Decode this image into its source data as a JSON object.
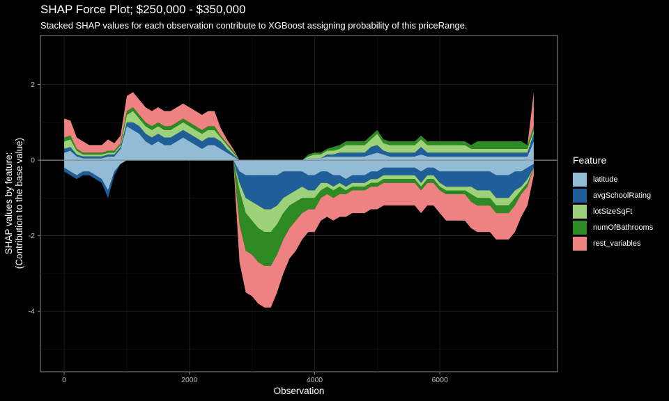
{
  "chart_data": {
    "type": "area",
    "title": "SHAP Force Plot; $250,000 - $350,000",
    "subtitle": "Stacked SHAP values for each observation contribute to XGBoost assigning probability of this priceRange.",
    "xlabel": "Observation",
    "ylabel": "SHAP values by feature:\n(Contribution to the base value)",
    "xlim": [
      -380,
      7880
    ],
    "ylim": [
      -5.6,
      3.3
    ],
    "x_ticks": [
      0,
      2000,
      4000,
      6000
    ],
    "x_tick_labels": [
      "0",
      "2000",
      "4000",
      "6000"
    ],
    "y_ticks": [
      2,
      0,
      -2,
      -4
    ],
    "y_tick_labels": [
      "2",
      "0",
      "-2",
      "-4"
    ],
    "grid": true,
    "legend_position": "right",
    "legend_title": "Feature",
    "x": [
      0,
      100,
      200,
      300,
      400,
      500,
      600,
      700,
      800,
      900,
      1000,
      1100,
      1200,
      1300,
      1400,
      1500,
      1600,
      1700,
      1800,
      1900,
      2000,
      2100,
      2200,
      2300,
      2400,
      2500,
      2600,
      2700,
      2800,
      2900,
      3000,
      3100,
      3200,
      3300,
      3400,
      3500,
      3600,
      3700,
      3800,
      3900,
      4000,
      4100,
      4200,
      4300,
      4400,
      4500,
      4600,
      4700,
      4800,
      4900,
      5000,
      5100,
      5200,
      5300,
      5400,
      5500,
      5600,
      5700,
      5800,
      5900,
      6000,
      6100,
      6200,
      6300,
      6400,
      6500,
      6600,
      6700,
      6800,
      6900,
      7000,
      7100,
      7200,
      7300,
      7400,
      7500
    ],
    "series": [
      {
        "name": "latitude",
        "color": "#92bcd6",
        "pos": [
          0.2,
          0.25,
          0.1,
          0.05,
          0.05,
          0.05,
          0.05,
          0.1,
          0.1,
          0.3,
          0.9,
          0.8,
          0.7,
          0.5,
          0.4,
          0.5,
          0.4,
          0.4,
          0.5,
          0.6,
          0.5,
          0.4,
          0.3,
          0.4,
          0.4,
          0.3,
          0.2,
          0.1,
          0.0,
          0.0,
          0.0,
          0.0,
          0.0,
          0.0,
          0.0,
          0.0,
          0.0,
          0.0,
          0.0,
          0.05,
          0.05,
          0.05,
          0.1,
          0.1,
          0.1,
          0.1,
          0.1,
          0.1,
          0.1,
          0.15,
          0.2,
          0.15,
          0.1,
          0.1,
          0.1,
          0.1,
          0.1,
          0.15,
          0.1,
          0.1,
          0.1,
          0.1,
          0.1,
          0.1,
          0.1,
          0.1,
          0.1,
          0.1,
          0.1,
          0.1,
          0.1,
          0.1,
          0.1,
          0.1,
          0.1,
          0.5
        ],
        "neg": [
          0.2,
          0.3,
          0.4,
          0.3,
          0.3,
          0.4,
          0.5,
          0.8,
          0.3,
          0.1,
          0.0,
          0.0,
          0.0,
          0.0,
          0.0,
          0.0,
          0.0,
          0.0,
          0.0,
          0.0,
          0.0,
          0.0,
          0.0,
          0.0,
          0.0,
          0.0,
          0.0,
          0.0,
          0.3,
          0.4,
          0.4,
          0.4,
          0.4,
          0.4,
          0.4,
          0.3,
          0.3,
          0.3,
          0.3,
          0.4,
          0.4,
          0.3,
          0.3,
          0.4,
          0.4,
          0.5,
          0.4,
          0.4,
          0.4,
          0.3,
          0.3,
          0.2,
          0.2,
          0.2,
          0.2,
          0.2,
          0.2,
          0.3,
          0.2,
          0.2,
          0.3,
          0.3,
          0.3,
          0.3,
          0.3,
          0.3,
          0.3,
          0.3,
          0.3,
          0.4,
          0.4,
          0.4,
          0.3,
          0.3,
          0.2,
          0.1
        ]
      },
      {
        "name": "avgSchoolRating",
        "color": "#1f5e99",
        "pos": [
          0.1,
          0.1,
          0.05,
          0.05,
          0.05,
          0.05,
          0.05,
          0.05,
          0.05,
          0.05,
          0.1,
          0.2,
          0.2,
          0.2,
          0.2,
          0.2,
          0.2,
          0.2,
          0.2,
          0.2,
          0.2,
          0.2,
          0.2,
          0.2,
          0.2,
          0.2,
          0.1,
          0.05,
          0.0,
          0.0,
          0.0,
          0.0,
          0.0,
          0.0,
          0.0,
          0.0,
          0.0,
          0.0,
          0.0,
          0.0,
          0.0,
          0.0,
          0.05,
          0.05,
          0.1,
          0.1,
          0.1,
          0.1,
          0.1,
          0.2,
          0.2,
          0.1,
          0.1,
          0.1,
          0.1,
          0.1,
          0.1,
          0.2,
          0.1,
          0.1,
          0.1,
          0.1,
          0.1,
          0.1,
          0.1,
          0.1,
          0.1,
          0.1,
          0.1,
          0.1,
          0.1,
          0.1,
          0.1,
          0.1,
          0.1,
          0.2
        ],
        "neg": [
          0.1,
          0.1,
          0.1,
          0.1,
          0.1,
          0.1,
          0.1,
          0.2,
          0.1,
          0.0,
          0.0,
          0.0,
          0.0,
          0.0,
          0.0,
          0.0,
          0.0,
          0.0,
          0.0,
          0.0,
          0.0,
          0.0,
          0.0,
          0.0,
          0.0,
          0.0,
          0.0,
          0.0,
          0.3,
          0.6,
          0.7,
          0.8,
          0.9,
          0.9,
          0.8,
          0.7,
          0.6,
          0.5,
          0.4,
          0.4,
          0.4,
          0.3,
          0.3,
          0.3,
          0.2,
          0.2,
          0.2,
          0.2,
          0.2,
          0.2,
          0.2,
          0.2,
          0.2,
          0.2,
          0.2,
          0.2,
          0.2,
          0.3,
          0.2,
          0.2,
          0.3,
          0.4,
          0.4,
          0.4,
          0.4,
          0.4,
          0.5,
          0.5,
          0.5,
          0.6,
          0.6,
          0.6,
          0.5,
          0.4,
          0.3,
          0.1
        ]
      },
      {
        "name": "lotSizeSqFt",
        "color": "#9ed27a",
        "pos": [
          0.2,
          0.2,
          0.1,
          0.05,
          0.05,
          0.05,
          0.05,
          0.05,
          0.05,
          0.05,
          0.2,
          0.3,
          0.2,
          0.2,
          0.2,
          0.2,
          0.2,
          0.2,
          0.2,
          0.2,
          0.2,
          0.2,
          0.2,
          0.2,
          0.2,
          0.1,
          0.1,
          0.05,
          0.0,
          0.0,
          0.0,
          0.0,
          0.0,
          0.0,
          0.0,
          0.0,
          0.0,
          0.0,
          0.0,
          0.05,
          0.1,
          0.1,
          0.1,
          0.1,
          0.1,
          0.2,
          0.2,
          0.2,
          0.2,
          0.2,
          0.3,
          0.2,
          0.2,
          0.2,
          0.2,
          0.2,
          0.2,
          0.2,
          0.2,
          0.2,
          0.2,
          0.2,
          0.2,
          0.2,
          0.2,
          0.1,
          0.1,
          0.1,
          0.1,
          0.1,
          0.1,
          0.1,
          0.1,
          0.1,
          0.1,
          0.1
        ],
        "neg": [
          0.0,
          0.0,
          0.0,
          0.0,
          0.0,
          0.0,
          0.0,
          0.0,
          0.0,
          0.0,
          0.0,
          0.0,
          0.0,
          0.0,
          0.0,
          0.0,
          0.0,
          0.0,
          0.0,
          0.0,
          0.0,
          0.0,
          0.0,
          0.0,
          0.0,
          0.0,
          0.0,
          0.0,
          0.2,
          0.4,
          0.5,
          0.6,
          0.6,
          0.6,
          0.5,
          0.4,
          0.3,
          0.3,
          0.3,
          0.2,
          0.2,
          0.2,
          0.1,
          0.1,
          0.1,
          0.1,
          0.1,
          0.1,
          0.1,
          0.1,
          0.1,
          0.1,
          0.1,
          0.1,
          0.1,
          0.1,
          0.1,
          0.1,
          0.1,
          0.1,
          0.1,
          0.1,
          0.1,
          0.1,
          0.1,
          0.2,
          0.2,
          0.2,
          0.2,
          0.2,
          0.2,
          0.2,
          0.2,
          0.1,
          0.1,
          0.0
        ]
      },
      {
        "name": "numOfBathrooms",
        "color": "#2e8a22",
        "pos": [
          0.1,
          0.1,
          0.05,
          0.05,
          0.05,
          0.05,
          0.05,
          0.05,
          0.05,
          0.05,
          0.1,
          0.1,
          0.1,
          0.1,
          0.1,
          0.1,
          0.1,
          0.1,
          0.1,
          0.1,
          0.1,
          0.1,
          0.1,
          0.1,
          0.1,
          0.05,
          0.05,
          0.05,
          0.0,
          0.0,
          0.0,
          0.0,
          0.0,
          0.0,
          0.0,
          0.0,
          0.0,
          0.0,
          0.0,
          0.05,
          0.05,
          0.05,
          0.05,
          0.1,
          0.1,
          0.1,
          0.1,
          0.1,
          0.1,
          0.1,
          0.1,
          0.1,
          0.1,
          0.1,
          0.1,
          0.1,
          0.1,
          0.1,
          0.1,
          0.1,
          0.1,
          0.1,
          0.1,
          0.1,
          0.1,
          0.1,
          0.2,
          0.2,
          0.2,
          0.2,
          0.2,
          0.2,
          0.2,
          0.2,
          0.1,
          0.1
        ],
        "neg": [
          0.0,
          0.0,
          0.0,
          0.0,
          0.0,
          0.0,
          0.0,
          0.0,
          0.0,
          0.0,
          0.0,
          0.0,
          0.0,
          0.0,
          0.0,
          0.0,
          0.0,
          0.0,
          0.0,
          0.0,
          0.0,
          0.0,
          0.0,
          0.0,
          0.0,
          0.0,
          0.0,
          0.0,
          0.9,
          1.0,
          0.9,
          0.9,
          0.9,
          0.9,
          0.8,
          0.7,
          0.6,
          0.5,
          0.4,
          0.3,
          0.3,
          0.2,
          0.2,
          0.2,
          0.2,
          0.1,
          0.1,
          0.1,
          0.1,
          0.1,
          0.1,
          0.1,
          0.1,
          0.1,
          0.1,
          0.1,
          0.1,
          0.1,
          0.1,
          0.1,
          0.1,
          0.1,
          0.1,
          0.1,
          0.1,
          0.2,
          0.2,
          0.2,
          0.2,
          0.2,
          0.2,
          0.2,
          0.2,
          0.1,
          0.1,
          0.0
        ]
      },
      {
        "name": "rest_variables",
        "color": "#ee8282",
        "pos": [
          0.5,
          0.4,
          0.3,
          0.3,
          0.2,
          0.2,
          0.2,
          0.3,
          0.2,
          0.2,
          0.4,
          0.4,
          0.4,
          0.4,
          0.4,
          0.4,
          0.4,
          0.4,
          0.4,
          0.4,
          0.4,
          0.4,
          0.4,
          0.4,
          0.4,
          0.2,
          0.1,
          0.05,
          0.0,
          0.0,
          0.0,
          0.0,
          0.0,
          0.0,
          0.0,
          0.0,
          0.0,
          0.0,
          0.0,
          0.0,
          0.0,
          0.0,
          0.0,
          0.0,
          0.0,
          0.0,
          0.0,
          0.0,
          0.0,
          0.0,
          0.0,
          0.0,
          0.0,
          0.0,
          0.0,
          0.0,
          0.0,
          0.0,
          0.0,
          0.0,
          0.0,
          0.0,
          0.0,
          0.0,
          0.0,
          0.0,
          0.0,
          0.0,
          0.0,
          0.0,
          0.0,
          0.0,
          0.0,
          0.0,
          0.0,
          0.9
        ],
        "neg": [
          0.0,
          0.0,
          0.0,
          0.0,
          0.0,
          0.0,
          0.0,
          0.0,
          0.0,
          0.0,
          0.0,
          0.0,
          0.0,
          0.0,
          0.0,
          0.0,
          0.0,
          0.0,
          0.0,
          0.0,
          0.0,
          0.0,
          0.0,
          0.0,
          0.0,
          0.0,
          0.0,
          0.0,
          1.0,
          1.1,
          1.1,
          1.1,
          1.1,
          1.1,
          1.0,
          0.9,
          0.8,
          0.8,
          0.7,
          0.6,
          0.6,
          0.6,
          0.6,
          0.6,
          0.6,
          0.6,
          0.6,
          0.6,
          0.6,
          0.6,
          0.6,
          0.6,
          0.6,
          0.6,
          0.6,
          0.6,
          0.6,
          0.6,
          0.6,
          0.6,
          0.6,
          0.7,
          0.7,
          0.7,
          0.7,
          0.7,
          0.7,
          0.7,
          0.7,
          0.7,
          0.7,
          0.7,
          0.7,
          0.6,
          0.5,
          0.2
        ]
      }
    ]
  }
}
